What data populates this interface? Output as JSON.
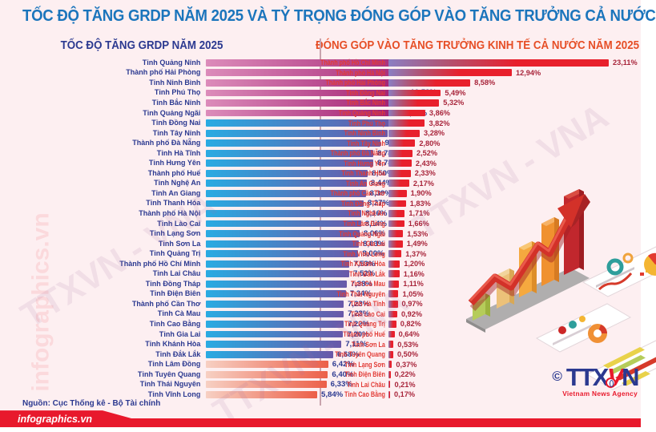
{
  "header": {
    "title": "TỐC ĐỘ TĂNG GRDP NĂM 2025 VÀ TỶ TRỌNG ĐÓNG GÓP VÀO TĂNG TRƯỞNG CẢ NƯỚC"
  },
  "source": "Nguồn: Cục Thống kê - Bộ Tài chính",
  "footer": {
    "site": "infographics.vn"
  },
  "logo": {
    "copyright": "©",
    "part1": "TTX",
    "part2": "V",
    "part3": "N",
    "agency": "Vietnam News Agency"
  },
  "watermark": "TTXVN - VNA",
  "colors": {
    "background": "#fdeff1",
    "title_blue": "#1b75bc",
    "navy": "#2b3990",
    "orange_red": "#e64e26",
    "red": "#e8192c",
    "pink_bar": [
      "#dc8cba",
      "#a01c70"
    ],
    "blue_bar": [
      "#29abe2",
      "#6a58a8"
    ],
    "salmon_bar": [
      "#f7d0c3",
      "#ec5f48"
    ],
    "purple_red_bar": [
      "#8a7fc3",
      "#e8202c"
    ]
  },
  "chart_data": [
    {
      "type": "bar",
      "orientation": "horizontal",
      "title": "TỐC ĐỘ TĂNG GRDP NĂM 2025",
      "value_suffix": "%",
      "decimal_separator": ",",
      "legend_position": "none",
      "grid": false,
      "xlim": [
        0,
        12
      ],
      "categories": [
        "Tỉnh Quảng Ninh",
        "Thành phố Hải Phòng",
        "Tỉnh Ninh Bình",
        "Tỉnh Phú Thọ",
        "Tỉnh Bắc Ninh",
        "Tỉnh Quảng Ngãi",
        "Tỉnh Đồng Nai",
        "Tỉnh Tây Ninh",
        "Thành phố Đà Nẵng",
        "Tỉnh Hà Tĩnh",
        "Tỉnh Hưng Yên",
        "Thành phố Huế",
        "Tỉnh Nghệ An",
        "Tỉnh An Giang",
        "Tỉnh Thanh Hóa",
        "Thành phố Hà Nội",
        "Tỉnh Lào Cai",
        "Tỉnh Lạng Sơn",
        "Tỉnh Sơn La",
        "Tỉnh Quảng Trị",
        "Thành phố Hồ Chí Minh",
        "Tỉnh Lai Châu",
        "Tỉnh Đồng Tháp",
        "Tỉnh Điện Biên",
        "Thành phố Cần Thơ",
        "Tỉnh Cà Mau",
        "Tỉnh Cao Bằng",
        "Tỉnh Gia Lai",
        "Tỉnh Khánh Hòa",
        "Tỉnh Đắk Lắk",
        "Tỉnh Lâm Đồng",
        "Tỉnh Tuyên Quang",
        "Tỉnh Thái Nguyên",
        "Tỉnh Vĩnh Long"
      ],
      "values": [
        11.89,
        11.81,
        10.65,
        10.52,
        10.27,
        10.02,
        9.63,
        9.52,
        9.18,
        8.78,
        8.78,
        8.5,
        8.44,
        8.39,
        8.27,
        8.16,
        8.14,
        8.06,
        8.03,
        8.0,
        7.53,
        7.52,
        7.38,
        7.34,
        7.23,
        7.23,
        7.22,
        7.2,
        7.11,
        6.68,
        6.42,
        6.4,
        6.33,
        5.84
      ],
      "styles": "ppppppbbbbbbbbbbbbbbbbbbbbbbbbssss"
    },
    {
      "type": "bar",
      "orientation": "horizontal",
      "title": "ĐÓNG GÓP VÀO TĂNG TRƯỞNG KINH TẾ CẢ NƯỚC NĂM 2025",
      "value_suffix": "%",
      "decimal_separator": ",",
      "legend_position": "none",
      "grid": false,
      "xlim": [
        0,
        24
      ],
      "categories": [
        "Thành phố Hồ Chí Minh",
        "Thành phố Hà Nội",
        "Thành phố Hải Phòng",
        "Tỉnh Đồng Nai",
        "Tỉnh Bắc Ninh",
        "Tỉnh Quảng Ninh",
        "Tỉnh Phú Thọ",
        "Tỉnh Ninh Bình",
        "Tỉnh Tây Ninh",
        "Thành phố Đà Nẵng",
        "Tỉnh Hưng Yên",
        "Tỉnh Thanh Hóa",
        "Tỉnh An Giang",
        "Thành phố Cần Thơ",
        "Tỉnh Đồng Tháp",
        "Tỉnh Nghệ An",
        "Tỉnh Lâm Đồng",
        "Tỉnh Quảng Ngãi",
        "Tỉnh Gia Lai",
        "Tỉnh Vĩnh Long",
        "Tỉnh Khánh Hòa",
        "Tỉnh Đắk Lắk",
        "Tỉnh Cà Mau",
        "Tỉnh Thái Nguyên",
        "Tỉnh Hà Tĩnh",
        "Tỉnh Lào Cai",
        "Tỉnh Quảng Trị",
        "Thành phố Huế",
        "Tỉnh Sơn La",
        "Tỉnh Tuyên Quang",
        "Tỉnh Lạng Sơn",
        "Tỉnh Điện Biên",
        "Tỉnh Lai Châu",
        "Tỉnh Cao Bằng"
      ],
      "values": [
        23.11,
        12.94,
        8.58,
        5.49,
        5.32,
        3.86,
        3.82,
        3.28,
        2.8,
        2.52,
        2.43,
        2.33,
        2.17,
        1.9,
        1.83,
        1.71,
        1.66,
        1.53,
        1.49,
        1.37,
        1.2,
        1.16,
        1.11,
        1.05,
        0.97,
        0.92,
        0.82,
        0.64,
        0.53,
        0.5,
        0.37,
        0.22,
        0.21,
        0.17
      ],
      "styles": "rrrrrrrrrrrrrrrrrrrrrrrrrrrrrrrrrr"
    }
  ]
}
